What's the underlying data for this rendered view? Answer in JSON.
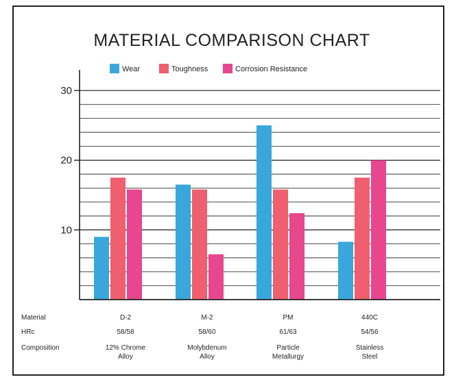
{
  "chart_data": {
    "type": "bar",
    "title": "MATERIAL COMPARISON CHART",
    "xlabel": "",
    "ylabel": "",
    "categories": [
      "D-2",
      "M-2",
      "PM",
      "440C"
    ],
    "series": [
      {
        "name": "Wear",
        "color": "#3aa7dc",
        "values": [
          9,
          16.5,
          25,
          8.3
        ]
      },
      {
        "name": "Toughness",
        "color": "#ef5f6e",
        "values": [
          17.5,
          15.8,
          15.8,
          17.5
        ]
      },
      {
        "name": "Corrosion Resistance",
        "color": "#e8468f",
        "values": [
          15.8,
          6.5,
          12.4,
          20
        ]
      }
    ],
    "ylim": [
      0,
      30
    ],
    "yticks": [
      10,
      20,
      30
    ],
    "grid": true,
    "legend_position": "top"
  },
  "table": {
    "row_labels": [
      "Material",
      "HRc",
      "Composition"
    ],
    "columns": [
      {
        "material": "D-2",
        "hrc": "58/58",
        "composition": [
          "12% Chrome",
          "Alloy"
        ]
      },
      {
        "material": "M-2",
        "hrc": "58/60",
        "composition": [
          "Molybdenum",
          "Alloy"
        ]
      },
      {
        "material": "PM",
        "hrc": "61/63",
        "composition": [
          "Particle",
          "Metallurgy"
        ]
      },
      {
        "material": "440C",
        "hrc": "54/56",
        "composition": [
          "Stainless",
          "Steel"
        ]
      }
    ]
  }
}
